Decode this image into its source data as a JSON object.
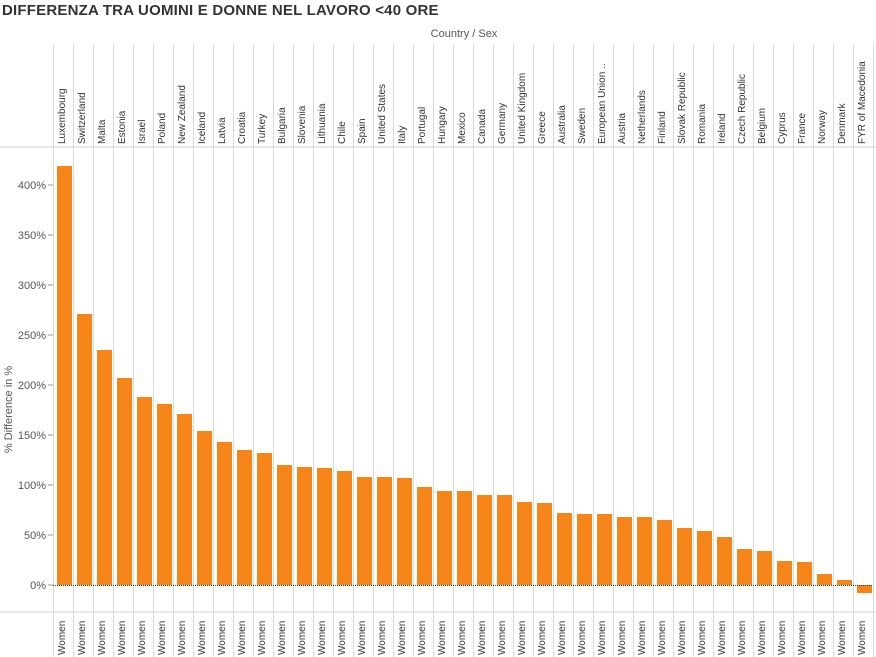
{
  "title": "DIFFERENZA TRA UOMINI E DONNE NEL LAVORO <40 ORE",
  "header_label": "Country  /  Sex",
  "chart_data": {
    "type": "bar",
    "title": "DIFFERENZA TRA UOMINI E DONNE NEL LAVORO <40 ORE",
    "column_header": "Country  /  Sex",
    "ylabel": "% Difference in %",
    "ylim": [
      -10,
      440
    ],
    "yticks": [
      "0%",
      "50%",
      "100%",
      "150%",
      "200%",
      "250%",
      "300%",
      "350%",
      "400%"
    ],
    "ytick_values": [
      0,
      50,
      100,
      150,
      200,
      250,
      300,
      350,
      400
    ],
    "sex_label": "Women",
    "bar_color": "#f58518",
    "grid": "vertical column dividers",
    "categories": [
      "Luxembourg",
      "Switzerland",
      "Malta",
      "Estonia",
      "Israel",
      "Poland",
      "New Zealand",
      "Iceland",
      "Latvia",
      "Croatia",
      "Turkey",
      "Bulgaria",
      "Slovenia",
      "Lithuania",
      "Chile",
      "Spain",
      "United States",
      "Italy",
      "Portugal",
      "Hungary",
      "Mexico",
      "Canada",
      "Germany",
      "United Kingdom",
      "Greece",
      "Australia",
      "Sweden",
      "European Union ..",
      "Austria",
      "Netherlands",
      "Finland",
      "Slovak Republic",
      "Romania",
      "Ireland",
      "Czech Republic",
      "Belgium",
      "Cyprus",
      "France",
      "Norway",
      "Denmark",
      "FYR of Macedonia"
    ],
    "values": [
      419,
      271,
      235,
      207,
      188,
      181,
      171,
      154,
      143,
      135,
      132,
      120,
      118,
      117,
      114,
      108,
      108,
      107,
      98,
      94,
      94,
      90,
      90,
      83,
      82,
      72,
      71,
      71,
      68,
      68,
      65,
      57,
      54,
      48,
      36,
      34,
      24,
      23,
      11,
      5,
      -8
    ]
  }
}
